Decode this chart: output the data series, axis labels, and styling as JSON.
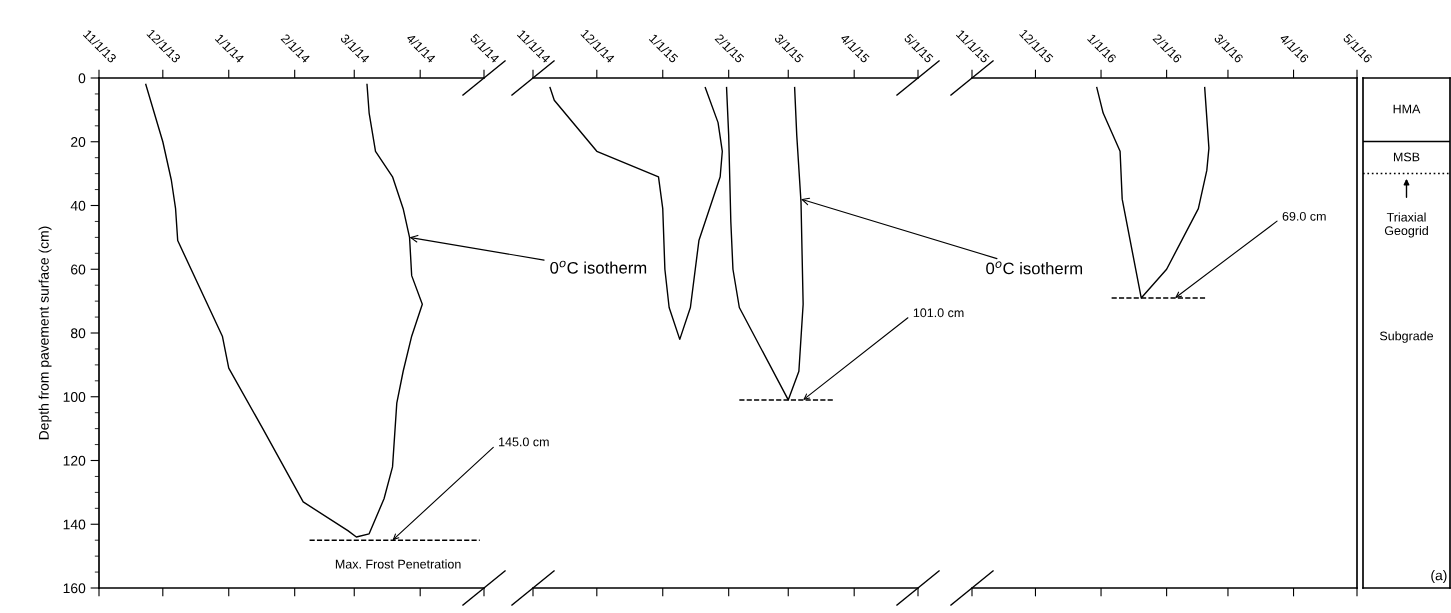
{
  "chart_data": [
    {
      "type": "line",
      "ylabel": "Depth from pavement surface (cm)",
      "ylim": [
        160,
        0
      ],
      "yticks": [
        0,
        20,
        40,
        60,
        80,
        100,
        120,
        140,
        160
      ],
      "xlim": [
        "2013-11-01",
        "2014-05-01"
      ],
      "xticks": [
        {
          "value": "2013-11-01",
          "label": "11/1/13"
        },
        {
          "value": "2013-12-01",
          "label": "12/1/13"
        },
        {
          "value": "2014-01-01",
          "label": "1/1/14"
        },
        {
          "value": "2014-02-01",
          "label": "2/1/14"
        },
        {
          "value": "2014-03-01",
          "label": "3/1/14"
        },
        {
          "value": "2014-04-01",
          "label": "4/1/14"
        },
        {
          "value": "2014-05-01",
          "label": "5/1/14"
        }
      ],
      "series": [
        {
          "color": "#000000",
          "x": [
            "2013-11-23",
            "2013-12-01",
            "2013-12-05",
            "2013-12-07",
            "2013-12-08",
            "2013-12-29",
            "2014-01-01",
            "2014-01-17",
            "2014-02-05",
            "2014-02-26",
            "2014-03-02",
            "2014-03-08",
            "2014-03-15",
            "2014-03-19",
            "2014-03-21",
            "2014-03-24",
            "2014-03-28",
            "2014-04-02",
            "2014-03-28",
            "2014-03-27",
            "2014-03-24",
            "2014-03-19",
            "2014-03-11",
            "2014-03-08",
            "2014-03-07"
          ],
          "values": [
            2,
            20,
            32,
            41,
            51,
            81,
            91,
            110,
            133,
            142,
            144,
            143,
            132,
            122,
            102,
            92,
            81,
            71,
            62,
            50,
            41,
            31,
            23,
            11,
            2
          ]
        },
        {
          "color": "#000000",
          "line_style": "dashed",
          "x": [
            "2014-02-08",
            "2014-04-29"
          ],
          "values": [
            145,
            145
          ]
        }
      ],
      "annotations": [
        {
          "text": "0$^{o}$C isotherm",
          "x": "2014-03-27",
          "y": 50
        },
        {
          "text": "145.0 cm",
          "x": "2014-03-19",
          "y": 145
        },
        {
          "text": "Max. Frost Penetration",
          "x": "2014-03-19",
          "y": 145
        }
      ]
    },
    {
      "type": "line",
      "ylim": [
        160,
        0
      ],
      "tick_labels": "x",
      "xlim": [
        "2014-11-01",
        "2015-05-01"
      ],
      "xticks": [
        {
          "value": "2014-11-01",
          "label": "11/1/14"
        },
        {
          "value": "2014-12-01",
          "label": "12/1/14"
        },
        {
          "value": "2015-01-01",
          "label": "1/1/15"
        },
        {
          "value": "2015-02-01",
          "label": "2/1/15"
        },
        {
          "value": "2015-03-01",
          "label": "3/1/15"
        },
        {
          "value": "2015-04-01",
          "label": "4/1/15"
        },
        {
          "value": "2015-05-01",
          "label": "5/1/15"
        }
      ],
      "series": [
        {
          "color": "#000000",
          "x": [
            "2014-11-09",
            "2014-11-11",
            "2014-12-01",
            "2014-12-30",
            "2015-01-01",
            "2015-01-02",
            "2015-01-04",
            "2015-01-09",
            "2015-01-14",
            "2015-01-18",
            "2015-01-28",
            "2015-01-29",
            "2015-01-27",
            "2015-01-21"
          ],
          "values": [
            3,
            7,
            23,
            31,
            41,
            60,
            72,
            82,
            72,
            51,
            31,
            23,
            14,
            3
          ]
        },
        {
          "color": "#000000",
          "x": [
            "2015-01-31",
            "2015-02-01",
            "2015-02-02",
            "2015-02-03",
            "2015-02-06",
            "2015-03-01",
            "2015-03-06",
            "2015-03-08",
            "2015-03-07",
            "2015-03-05",
            "2015-03-04"
          ],
          "values": [
            3,
            18,
            45,
            60,
            72,
            101,
            92,
            71,
            39,
            18,
            3
          ]
        },
        {
          "color": "#000000",
          "line_style": "dashed",
          "x": [
            "2015-02-06",
            "2015-03-23"
          ],
          "values": [
            101,
            101
          ]
        }
      ],
      "annotations": [
        {
          "text": "0$^{o}$C isotherm",
          "x": "2015-03-07",
          "y": 38
        },
        {
          "text": "101.0 cm",
          "x": "2015-03-08",
          "y": 101
        }
      ]
    },
    {
      "type": "line",
      "ylim": [
        160,
        0
      ],
      "tick_labels": "x",
      "xlim": [
        "2015-11-01",
        "2016-05-01"
      ],
      "xticks": [
        {
          "value": "2015-11-01",
          "label": "11/1/15"
        },
        {
          "value": "2015-12-01",
          "label": "12/1/15"
        },
        {
          "value": "2016-01-01",
          "label": "1/1/16"
        },
        {
          "value": "2016-02-01",
          "label": "2/1/16"
        },
        {
          "value": "2016-03-01",
          "label": "3/1/16"
        },
        {
          "value": "2016-04-01",
          "label": "4/1/16"
        },
        {
          "value": "2016-05-01",
          "label": "5/1/16"
        }
      ],
      "series": [
        {
          "color": "#000000",
          "x": [
            "2015-12-30",
            "2016-01-02",
            "2016-01-10",
            "2016-01-11",
            "2016-01-20",
            "2016-02-01",
            "2016-02-16",
            "2016-02-20",
            "2016-02-21",
            "2016-02-19"
          ],
          "values": [
            3,
            11,
            23,
            38,
            69,
            60,
            41,
            29,
            22,
            3
          ]
        },
        {
          "color": "#000000",
          "line_style": "dashed",
          "x": [
            "2016-01-06",
            "2016-02-20"
          ],
          "values": [
            69,
            69
          ]
        }
      ],
      "annotations": [
        {
          "text": "69.0 cm",
          "x": "2016-02-05",
          "y": 69
        }
      ]
    },
    {
      "type": "other",
      "annotations": [
        "HMA",
        "MSB",
        "Triaxial\nGeogrid",
        "Subgrade",
        "(a)"
      ]
    }
  ]
}
